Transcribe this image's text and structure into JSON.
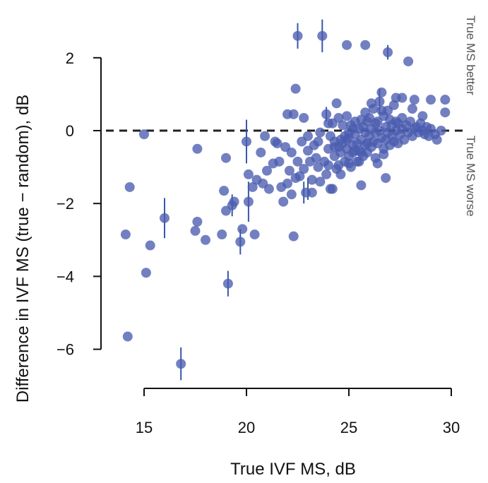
{
  "chart_data": {
    "type": "scatter",
    "xlabel": "True IVF MS, dB",
    "ylabel": "Difference in IVF MS (true − random), dB",
    "xlim": [
      14,
      30
    ],
    "ylim": [
      -6.7,
      3
    ],
    "x_ticks": [
      "15",
      "20",
      "25",
      "30"
    ],
    "y_ticks": [
      "2",
      "0",
      "−2",
      "−4",
      "−6"
    ],
    "x_tick_values": [
      15,
      20,
      25,
      30
    ],
    "y_tick_values": [
      2,
      0,
      -2,
      -4,
      -6
    ],
    "reference_line": 0,
    "annotations": {
      "above": "True MS better",
      "below": "True MS worse"
    },
    "colors": {
      "point": "#4a5cb0",
      "errorbar": "#3557ad",
      "axis": "#111111",
      "reference": "#222222"
    },
    "points": [
      [
        14.1,
        -2.85
      ],
      [
        14.2,
        -5.65
      ],
      [
        14.3,
        -1.55
      ],
      [
        15.0,
        -0.1
      ],
      [
        15.1,
        -3.9
      ],
      [
        15.3,
        -3.15
      ],
      [
        16.0,
        -2.4
      ],
      [
        16.8,
        -6.4
      ],
      [
        17.5,
        -2.75
      ],
      [
        17.6,
        -2.5
      ],
      [
        17.6,
        -0.5
      ],
      [
        18.0,
        -3.0
      ],
      [
        18.8,
        -2.85
      ],
      [
        18.9,
        -1.65
      ],
      [
        19.0,
        -2.2
      ],
      [
        19.0,
        -0.75
      ],
      [
        19.1,
        -4.2
      ],
      [
        19.3,
        -2.05
      ],
      [
        19.4,
        -1.95
      ],
      [
        19.7,
        -3.05
      ],
      [
        19.8,
        -2.7
      ],
      [
        20.0,
        -0.3
      ],
      [
        20.1,
        -1.95
      ],
      [
        20.1,
        -1.2
      ],
      [
        20.3,
        -1.55
      ],
      [
        20.4,
        -2.85
      ],
      [
        20.5,
        -1.35
      ],
      [
        20.7,
        -0.6
      ],
      [
        20.8,
        -1.45
      ],
      [
        20.9,
        -0.15
      ],
      [
        21.0,
        -1.1
      ],
      [
        21.1,
        -1.6
      ],
      [
        21.3,
        -0.9
      ],
      [
        21.4,
        -0.3
      ],
      [
        21.5,
        -0.35
      ],
      [
        21.6,
        -0.85
      ],
      [
        21.7,
        -1.55
      ],
      [
        21.8,
        -1.95
      ],
      [
        21.9,
        -0.45
      ],
      [
        22.0,
        0.45
      ],
      [
        22.0,
        -1.45
      ],
      [
        22.1,
        -1.1
      ],
      [
        22.2,
        -1.75
      ],
      [
        22.2,
        -0.6
      ],
      [
        22.3,
        -2.9
      ],
      [
        22.3,
        0.45
      ],
      [
        22.4,
        1.15
      ],
      [
        22.4,
        -1.3
      ],
      [
        22.5,
        -0.85
      ],
      [
        22.5,
        2.6
      ],
      [
        22.6,
        -1.25
      ],
      [
        22.7,
        -0.3
      ],
      [
        22.8,
        0.35
      ],
      [
        22.8,
        -1.05
      ],
      [
        22.9,
        -1.7
      ],
      [
        23.0,
        -0.15
      ],
      [
        23.0,
        -0.55
      ],
      [
        23.1,
        -0.85
      ],
      [
        23.2,
        -1.35
      ],
      [
        23.2,
        -1.7
      ],
      [
        23.3,
        -0.4
      ],
      [
        23.4,
        -0.75
      ],
      [
        23.5,
        -1.0
      ],
      [
        23.6,
        -1.4
      ],
      [
        23.6,
        -0.05
      ],
      [
        23.7,
        2.6
      ],
      [
        23.8,
        -0.85
      ],
      [
        23.9,
        0.45
      ],
      [
        23.9,
        -1.2
      ],
      [
        24.0,
        -0.5
      ],
      [
        24.0,
        -0.95
      ],
      [
        24.1,
        -1.6
      ],
      [
        24.1,
        -0.15
      ],
      [
        24.2,
        0.2
      ],
      [
        24.2,
        -1.6
      ],
      [
        24.3,
        -0.3
      ],
      [
        24.3,
        -0.7
      ],
      [
        24.4,
        0.75
      ],
      [
        24.4,
        -1.05
      ],
      [
        24.5,
        0.35
      ],
      [
        24.5,
        -0.45
      ],
      [
        24.6,
        -0.6
      ],
      [
        24.6,
        -1.2
      ],
      [
        24.7,
        0.15
      ],
      [
        24.7,
        -0.35
      ],
      [
        24.8,
        -0.85
      ],
      [
        24.8,
        -0.15
      ],
      [
        24.9,
        0.4
      ],
      [
        24.9,
        -0.5
      ],
      [
        25.0,
        -0.7
      ],
      [
        25.0,
        -0.2
      ],
      [
        25.1,
        0.15
      ],
      [
        25.1,
        -1.0
      ],
      [
        25.2,
        -0.4
      ],
      [
        25.2,
        -0.6
      ],
      [
        25.3,
        0.25
      ],
      [
        25.3,
        -0.1
      ],
      [
        25.4,
        -0.85
      ],
      [
        25.4,
        -0.35
      ],
      [
        25.5,
        0.05
      ],
      [
        25.5,
        -0.55
      ],
      [
        25.6,
        0.3
      ],
      [
        25.6,
        -0.25
      ],
      [
        25.7,
        -0.7
      ],
      [
        25.7,
        0.1
      ],
      [
        25.8,
        -0.4
      ],
      [
        25.8,
        -0.05
      ],
      [
        25.9,
        0.25
      ],
      [
        25.9,
        -0.6
      ],
      [
        26.0,
        -0.15
      ],
      [
        26.0,
        0.35
      ],
      [
        26.1,
        -0.45
      ],
      [
        26.1,
        0.05
      ],
      [
        26.2,
        -0.3
      ],
      [
        26.2,
        0.6
      ],
      [
        26.3,
        -0.05
      ],
      [
        26.3,
        -0.75
      ],
      [
        26.4,
        0.25
      ],
      [
        26.4,
        -0.35
      ],
      [
        26.5,
        0.8
      ],
      [
        26.5,
        0.0
      ],
      [
        26.6,
        1.05
      ],
      [
        26.6,
        -0.2
      ],
      [
        26.7,
        0.4
      ],
      [
        26.7,
        -0.5
      ],
      [
        26.8,
        0.1
      ],
      [
        26.8,
        -0.25
      ],
      [
        26.9,
        0.55
      ],
      [
        26.9,
        -0.05
      ],
      [
        27.0,
        0.3
      ],
      [
        27.0,
        -0.4
      ],
      [
        27.1,
        0.15
      ],
      [
        27.1,
        -0.15
      ],
      [
        27.2,
        0.7
      ],
      [
        27.2,
        -0.3
      ],
      [
        27.3,
        0.0
      ],
      [
        27.3,
        0.9
      ],
      [
        27.4,
        0.2
      ],
      [
        27.5,
        -0.1
      ],
      [
        27.6,
        0.35
      ],
      [
        27.6,
        0.05
      ],
      [
        27.7,
        -0.25
      ],
      [
        27.8,
        0.15
      ],
      [
        27.9,
        -0.05
      ],
      [
        28.0,
        0.25
      ],
      [
        28.1,
        0.6
      ],
      [
        28.1,
        -0.15
      ],
      [
        28.2,
        0.05
      ],
      [
        28.3,
        0.1
      ],
      [
        28.4,
        -0.05
      ],
      [
        28.5,
        0.2
      ],
      [
        28.6,
        0.0
      ],
      [
        28.7,
        -0.1
      ],
      [
        28.8,
        0.1
      ],
      [
        28.9,
        -0.15
      ],
      [
        29.0,
        0.05
      ],
      [
        29.2,
        -0.1
      ],
      [
        29.5,
        0.0
      ],
      [
        29.7,
        0.5
      ],
      [
        29.7,
        0.85
      ],
      [
        29.0,
        0.85
      ],
      [
        28.2,
        0.85
      ],
      [
        27.6,
        0.9
      ],
      [
        26.1,
        0.75
      ],
      [
        25.0,
        -0.05
      ],
      [
        24.0,
        0.2
      ],
      [
        26.8,
        -1.3
      ],
      [
        25.6,
        -1.5
      ],
      [
        24.5,
        -0.95
      ],
      [
        23.5,
        -0.3
      ],
      [
        25.5,
        -0.85
      ],
      [
        26.4,
        -0.9
      ],
      [
        27.9,
        1.9
      ],
      [
        26.9,
        2.15
      ],
      [
        25.8,
        2.35
      ],
      [
        24.9,
        2.35
      ],
      [
        24.9,
        -0.25
      ],
      [
        25.3,
        -0.55
      ],
      [
        25.9,
        -0.35
      ],
      [
        26.3,
        0.2
      ],
      [
        26.7,
        -0.65
      ],
      [
        27.4,
        -0.35
      ],
      [
        25.6,
        -0.6
      ],
      [
        25.2,
        0.05
      ],
      [
        24.6,
        -0.25
      ],
      [
        25.8,
        0.5
      ],
      [
        26.6,
        0.55
      ],
      [
        27.3,
        0.25
      ],
      [
        28.6,
        0.4
      ],
      [
        29.3,
        -0.25
      ],
      [
        25.0,
        -0.9
      ],
      [
        24.3,
        -0.45
      ]
    ],
    "error_bars": [
      [
        16.0,
        -2.4,
        0.55
      ],
      [
        16.8,
        -6.4,
        0.45
      ],
      [
        19.1,
        -4.2,
        0.35
      ],
      [
        19.7,
        -3.05,
        0.35
      ],
      [
        19.3,
        -2.05,
        0.3
      ],
      [
        20.0,
        -0.3,
        0.6
      ],
      [
        20.1,
        -1.95,
        0.55
      ],
      [
        22.5,
        2.6,
        0.35
      ],
      [
        23.7,
        2.6,
        0.45
      ],
      [
        22.8,
        -1.7,
        0.3
      ],
      [
        23.0,
        -1.6,
        0.3
      ],
      [
        26.9,
        2.15,
        0.2
      ],
      [
        23.9,
        0.45,
        0.2
      ],
      [
        26.5,
        0.8,
        0.35
      ]
    ]
  }
}
